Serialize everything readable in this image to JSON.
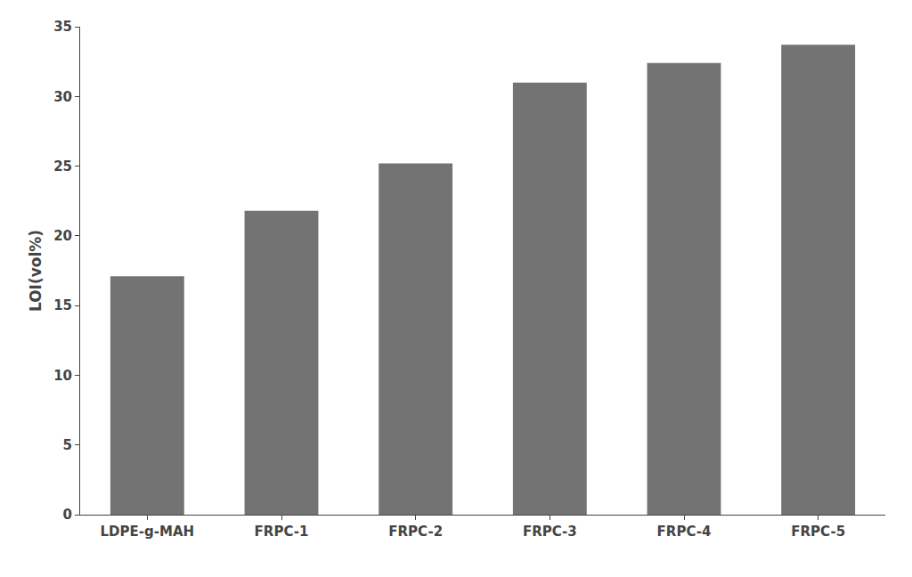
{
  "chart_data": {
    "type": "bar",
    "categories": [
      "LDPE-g-MAH",
      "FRPC-1",
      "FRPC-2",
      "FRPC-3",
      "FRPC-4",
      "FRPC-5"
    ],
    "values": [
      17.1,
      21.8,
      25.2,
      31.0,
      32.4,
      33.7
    ],
    "color": "#737373",
    "ylabel": "LOI(vol%)",
    "ylim": [
      0,
      35
    ],
    "yticks": [
      0,
      5,
      10,
      15,
      20,
      25,
      30,
      35
    ],
    "grid": false
  }
}
